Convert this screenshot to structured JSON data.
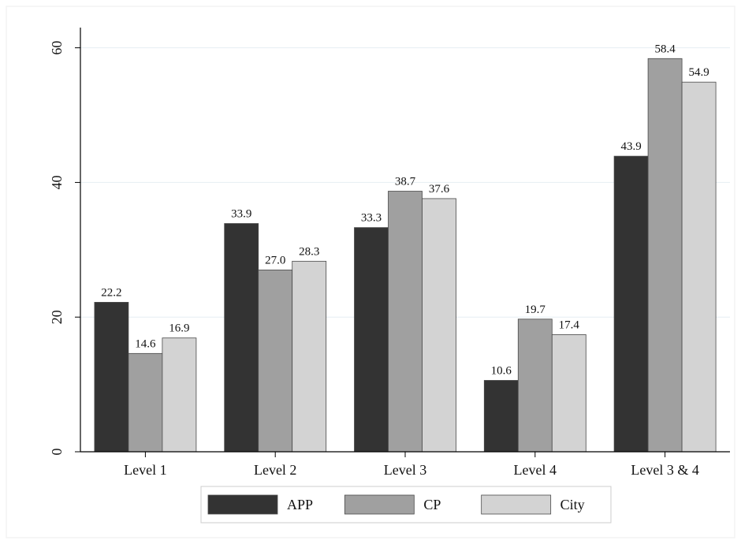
{
  "chart_data": {
    "type": "bar",
    "title": "",
    "xlabel": "",
    "ylabel": "",
    "ylim": [
      0,
      63
    ],
    "yticks": [
      0,
      20,
      40,
      60
    ],
    "grid": true,
    "legend_position": "bottom",
    "categories": [
      "Level 1",
      "Level 2",
      "Level 3",
      "Level 4",
      "Level 3 & 4"
    ],
    "series": [
      {
        "name": "APP",
        "color": "#333333",
        "values": [
          22.2,
          33.9,
          33.3,
          10.6,
          43.9
        ],
        "labels": [
          "22.2",
          "33.9",
          "33.3",
          "10.6",
          "43.9"
        ]
      },
      {
        "name": "CP",
        "color": "#a0a0a0",
        "values": [
          14.6,
          27.0,
          38.7,
          19.7,
          58.4
        ],
        "labels": [
          "14.6",
          "27.0",
          "38.7",
          "19.7",
          "58.4"
        ]
      },
      {
        "name": "City",
        "color": "#d3d3d3",
        "values": [
          16.9,
          28.3,
          37.6,
          17.4,
          54.9
        ],
        "labels": [
          "16.9",
          "28.3",
          "37.6",
          "17.4",
          "54.9"
        ]
      }
    ]
  }
}
